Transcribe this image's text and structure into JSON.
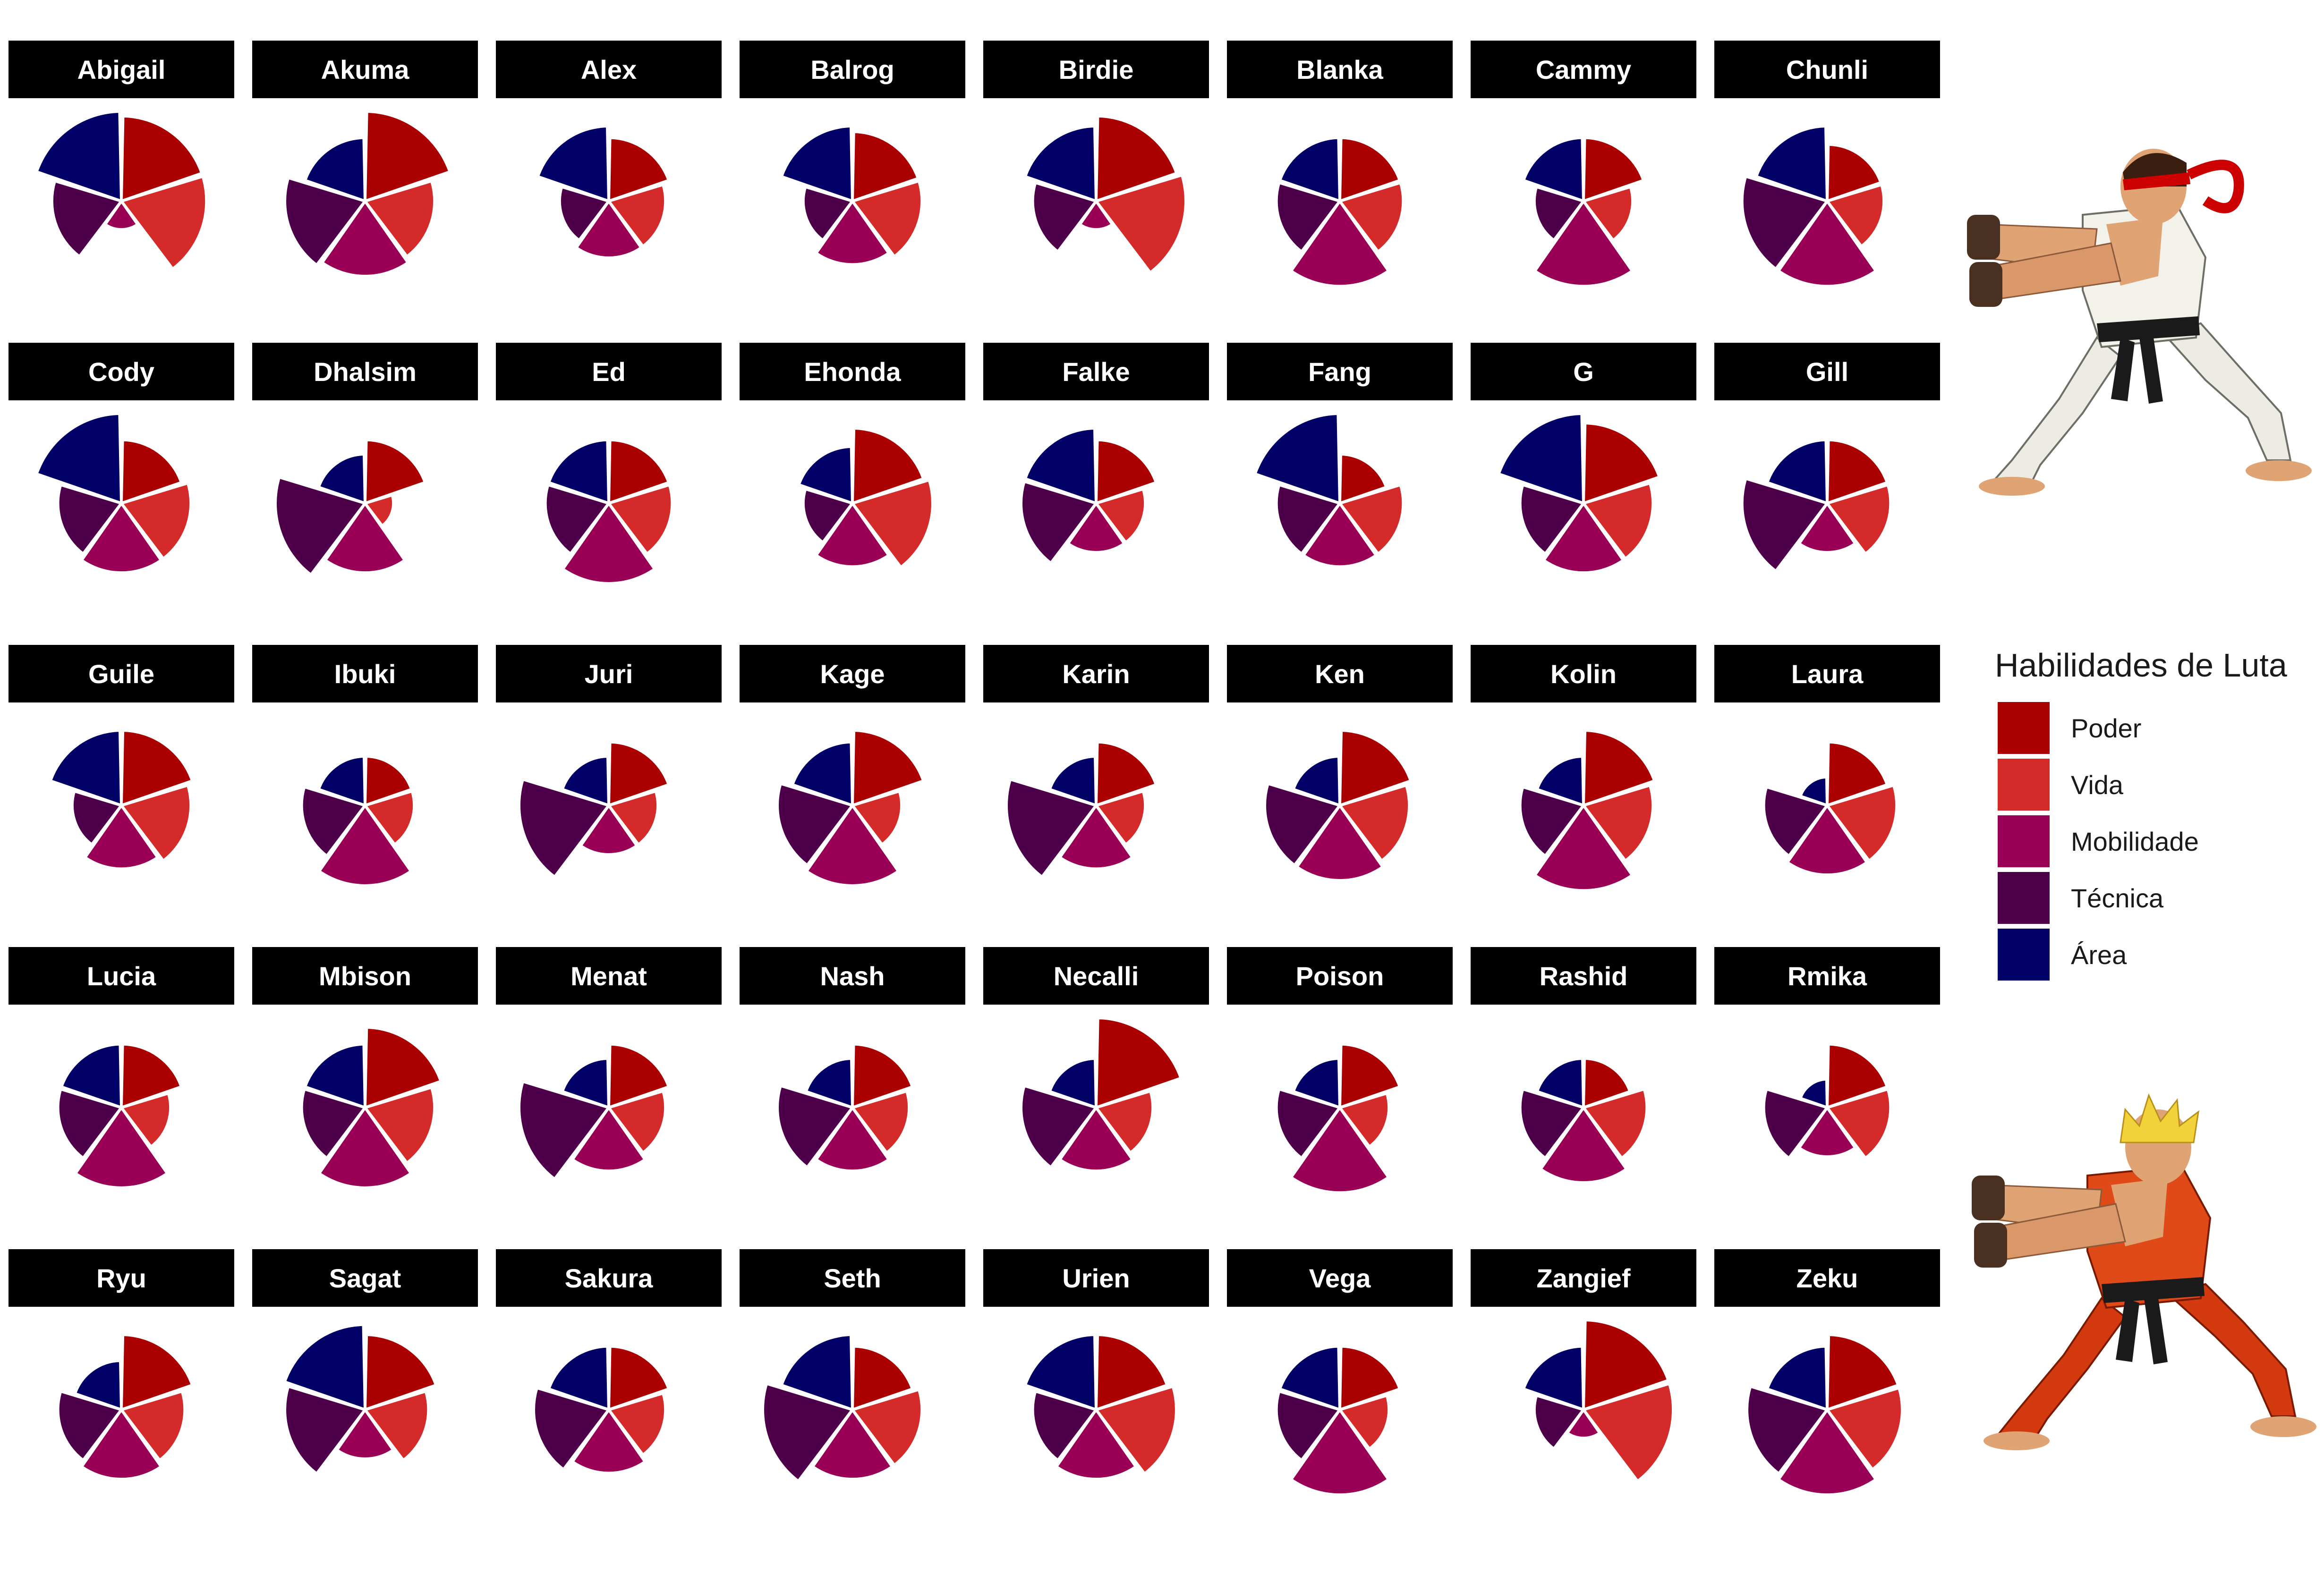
{
  "legend": {
    "title": "Habilidades de Luta",
    "items": [
      {
        "key": "poder",
        "label": "Poder",
        "color": "#AA0000"
      },
      {
        "key": "vida",
        "label": "Vida",
        "color": "#D42A2A"
      },
      {
        "key": "mobilidade",
        "label": "Mobilidade",
        "color": "#990055"
      },
      {
        "key": "tecnica",
        "label": "Técnica",
        "color": "#4D0049"
      },
      {
        "key": "area",
        "label": "Área",
        "color": "#000066"
      }
    ]
  },
  "illustrations": [
    {
      "name": "ryu-figure",
      "icon": "ryu-hadouken-icon"
    },
    {
      "name": "ken-figure",
      "icon": "ken-hadouken-icon"
    }
  ],
  "chart_data": {
    "type": "polar-bar",
    "layout": "faceted-grid-8x5",
    "categories": [
      "Poder",
      "Vida",
      "Mobilidade",
      "Técnica",
      "Área"
    ],
    "colors": [
      "#AA0000",
      "#D42A2A",
      "#990055",
      "#4D0049",
      "#000066"
    ],
    "rmax": 10,
    "facets": [
      {
        "name": "Abigail",
        "values": [
          9,
          9,
          1,
          6,
          10
        ]
      },
      {
        "name": "Akuma",
        "values": [
          10,
          6,
          7,
          8,
          5
        ]
      },
      {
        "name": "Alex",
        "values": [
          5,
          4,
          4,
          3,
          7
        ]
      },
      {
        "name": "Balrog",
        "values": [
          6,
          6,
          5,
          3,
          7
        ]
      },
      {
        "name": "Birdie",
        "values": [
          9,
          10,
          1,
          5,
          7
        ]
      },
      {
        "name": "Blanka",
        "values": [
          5,
          5,
          9,
          5,
          5
        ]
      },
      {
        "name": "Cammy",
        "values": [
          5,
          3,
          9,
          3,
          5
        ]
      },
      {
        "name": "Chunli",
        "values": [
          4,
          4,
          9,
          9,
          7
        ]
      },
      {
        "name": "Cody",
        "values": [
          5,
          6,
          6,
          5,
          10
        ]
      },
      {
        "name": "Dhalsim",
        "values": [
          5,
          1,
          6,
          10,
          3
        ]
      },
      {
        "name": "Ed",
        "values": [
          5,
          5,
          8,
          5,
          5
        ]
      },
      {
        "name": "Ehonda",
        "values": [
          7,
          8,
          5,
          3,
          4
        ]
      },
      {
        "name": "Falke",
        "values": [
          5,
          3,
          3,
          7,
          7
        ]
      },
      {
        "name": "Fang",
        "values": [
          3,
          5,
          5,
          5,
          10
        ]
      },
      {
        "name": "G",
        "values": [
          8,
          6,
          6,
          5,
          10
        ]
      },
      {
        "name": "Gill",
        "values": [
          5,
          5,
          3,
          9,
          5
        ]
      },
      {
        "name": "Guile",
        "values": [
          7,
          6,
          5,
          3,
          7
        ]
      },
      {
        "name": "Ibuki",
        "values": [
          3,
          3,
          8,
          5,
          3
        ]
      },
      {
        "name": "Juri",
        "values": [
          5,
          3,
          3,
          10,
          3
        ]
      },
      {
        "name": "Kage",
        "values": [
          7,
          3,
          8,
          7,
          5
        ]
      },
      {
        "name": "Karin",
        "values": [
          5,
          3,
          5,
          10,
          3
        ]
      },
      {
        "name": "Ken",
        "values": [
          7,
          6,
          7,
          7,
          3
        ]
      },
      {
        "name": "Kolin",
        "values": [
          7,
          6,
          9,
          5,
          3
        ]
      },
      {
        "name": "Laura",
        "values": [
          5,
          6,
          6,
          5,
          1
        ]
      },
      {
        "name": "Lucia",
        "values": [
          5,
          3,
          8,
          5,
          5
        ]
      },
      {
        "name": "Mbison",
        "values": [
          8,
          6,
          8,
          5,
          5
        ]
      },
      {
        "name": "Menat",
        "values": [
          5,
          4,
          5,
          10,
          3
        ]
      },
      {
        "name": "Nash",
        "values": [
          5,
          4,
          5,
          7,
          3
        ]
      },
      {
        "name": "Necalli",
        "values": [
          10,
          4,
          5,
          7,
          3
        ]
      },
      {
        "name": "Poison",
        "values": [
          5,
          3,
          9,
          5,
          3
        ]
      },
      {
        "name": "Rashid",
        "values": [
          3,
          5,
          7,
          5,
          3
        ]
      },
      {
        "name": "Rmika",
        "values": [
          5,
          5,
          3,
          5,
          1
        ]
      },
      {
        "name": "Ryu",
        "values": [
          7,
          5,
          6,
          5,
          3
        ]
      },
      {
        "name": "Sagat",
        "values": [
          7,
          5,
          3,
          8,
          9
        ]
      },
      {
        "name": "Sakura",
        "values": [
          5,
          4,
          5,
          7,
          5
        ]
      },
      {
        "name": "Seth",
        "values": [
          5,
          6,
          6,
          10,
          7
        ]
      },
      {
        "name": "Urien",
        "values": [
          7,
          8,
          6,
          5,
          7
        ]
      },
      {
        "name": "Vega",
        "values": [
          5,
          3,
          9,
          5,
          5
        ]
      },
      {
        "name": "Zangief",
        "values": [
          10,
          10,
          1,
          3,
          5
        ]
      },
      {
        "name": "Zeku",
        "values": [
          7,
          7,
          9,
          8,
          5
        ]
      }
    ]
  }
}
